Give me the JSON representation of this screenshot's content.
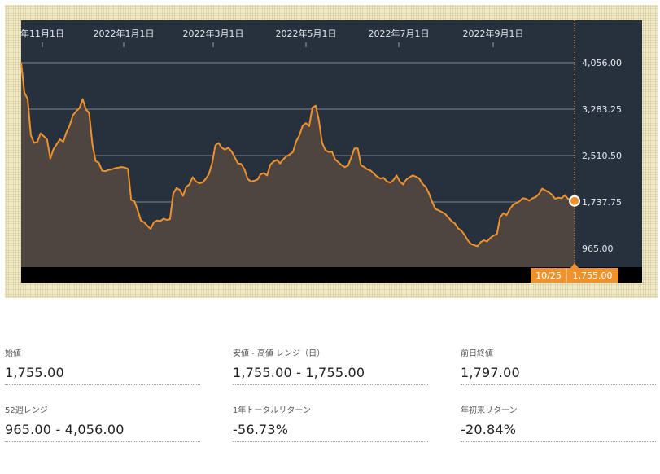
{
  "chart_data": {
    "type": "area",
    "x_ticks": [
      "年11月1日",
      "2022年1月1日",
      "2022年3月1日",
      "2022年5月1日",
      "2022年7月1日",
      "2022年9月1日"
    ],
    "y_ticks": [
      "4,056.00",
      "3,283.25",
      "2,510.50",
      "1,737.75",
      "965.00"
    ],
    "ylim": [
      965,
      4056
    ],
    "grid": true,
    "colors": {
      "line": "#f0922b",
      "fill": "#4e4541",
      "plot_bg": "#27313d",
      "marker_bg": "#f0922b"
    },
    "series": [
      {
        "values": [
          4056,
          3560,
          3450,
          2850,
          2720,
          2740,
          2880,
          2830,
          2780,
          2460,
          2620,
          2700,
          2780,
          2740,
          2900,
          3010,
          3180,
          3250,
          3300,
          3450,
          3280,
          3220,
          2700,
          2420,
          2390,
          2260,
          2250,
          2270,
          2280,
          2300,
          2310,
          2320,
          2310,
          2290,
          1770,
          1750,
          1600,
          1430,
          1400,
          1340,
          1290,
          1400,
          1430,
          1420,
          1460,
          1440,
          1450,
          1880,
          1970,
          1940,
          1840,
          1990,
          2030,
          2150,
          2080,
          2050,
          2060,
          2120,
          2200,
          2380,
          2680,
          2720,
          2640,
          2610,
          2640,
          2580,
          2480,
          2380,
          2370,
          2280,
          2120,
          2080,
          2090,
          2110,
          2200,
          2220,
          2180,
          2360,
          2410,
          2440,
          2380,
          2450,
          2500,
          2530,
          2570,
          2750,
          2850,
          3010,
          3050,
          3000,
          3310,
          3340,
          3100,
          2720,
          2600,
          2570,
          2580,
          2450,
          2400,
          2350,
          2320,
          2340,
          2480,
          2630,
          2630,
          2350,
          2320,
          2280,
          2260,
          2210,
          2160,
          2130,
          2140,
          2080,
          2060,
          2100,
          2180,
          2080,
          2030,
          2110,
          2150,
          2180,
          2160,
          2130,
          2040,
          1990,
          1880,
          1740,
          1620,
          1600,
          1570,
          1540,
          1480,
          1420,
          1380,
          1300,
          1260,
          1190,
          1100,
          1040,
          1020,
          1000,
          1070,
          1100,
          1080,
          1140,
          1180,
          1200,
          1480,
          1550,
          1520,
          1620,
          1690,
          1720,
          1750,
          1800,
          1790,
          1760,
          1800,
          1820,
          1870,
          1960,
          1930,
          1900,
          1860,
          1790,
          1810,
          1800,
          1850,
          1790,
          1780,
          1755
        ]
      }
    ],
    "current": {
      "date": "10/25",
      "value": "1,755.00"
    }
  },
  "stats": [
    {
      "label": "始値",
      "value": "1,755.00"
    },
    {
      "label": "安値 - 高値 レンジ（日）",
      "value": "1,755.00 - 1,755.00"
    },
    {
      "label": "前日終値",
      "value": "1,797.00"
    },
    {
      "label": "52週レンジ",
      "value": "965.00 - 4,056.00"
    },
    {
      "label": "1年トータルリターン",
      "value": "-56.73%"
    },
    {
      "label": "年初来リターン",
      "value": "-20.84%"
    }
  ]
}
